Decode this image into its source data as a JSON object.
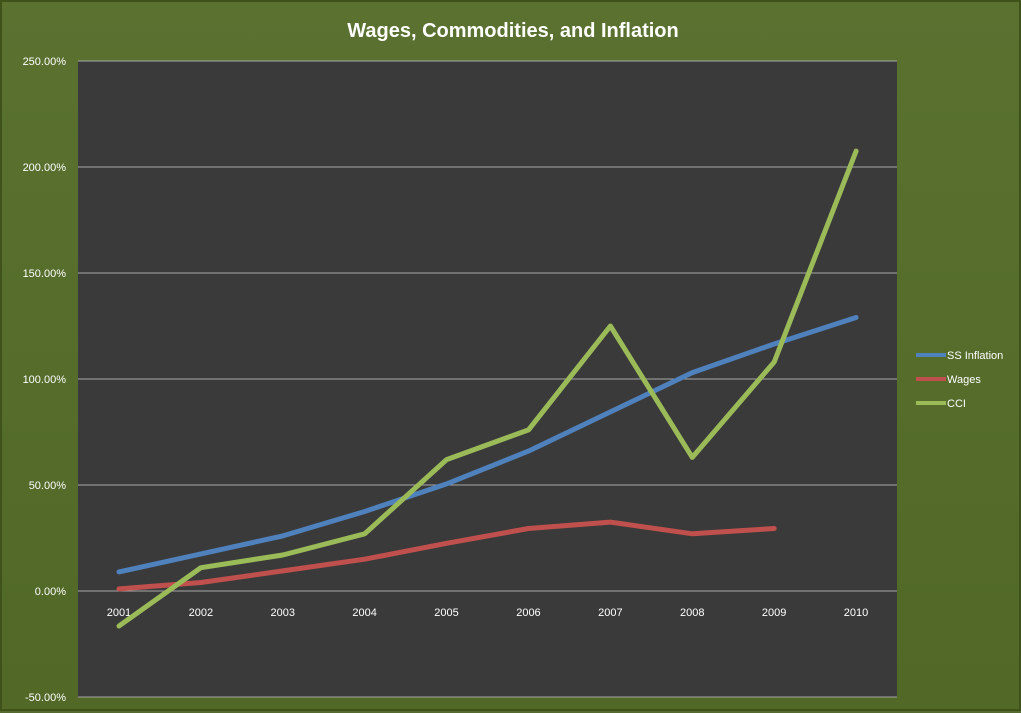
{
  "chart_data": {
    "type": "line",
    "title": "Wages, Commodities, and Inflation",
    "xlabel": "",
    "ylabel": "",
    "categories": [
      "2001",
      "2002",
      "2003",
      "2004",
      "2005",
      "2006",
      "2007",
      "2008",
      "2009",
      "2010"
    ],
    "ylim": [
      -50,
      250
    ],
    "yticks": [
      -50,
      0,
      50,
      100,
      150,
      200,
      250
    ],
    "ytick_labels": [
      "-50.00%",
      "0.00%",
      "50.00%",
      "100.00%",
      "150.00%",
      "200.00%",
      "250.00%"
    ],
    "grid": true,
    "legend_position": "right",
    "series": [
      {
        "name": "SS Inflation",
        "color": "#4f81bd",
        "values": [
          9,
          17.5,
          26,
          37.5,
          50.5,
          66,
          84.5,
          103,
          116.5,
          129
        ]
      },
      {
        "name": "Wages",
        "color": "#c0504d",
        "values": [
          1,
          4,
          9.5,
          15,
          22.5,
          29.5,
          32.5,
          27,
          29.5,
          null
        ]
      },
      {
        "name": "CCI",
        "color": "#9bbb59",
        "values": [
          -16.5,
          11,
          17,
          27,
          62,
          76,
          125,
          63,
          108,
          207.5
        ]
      }
    ]
  }
}
